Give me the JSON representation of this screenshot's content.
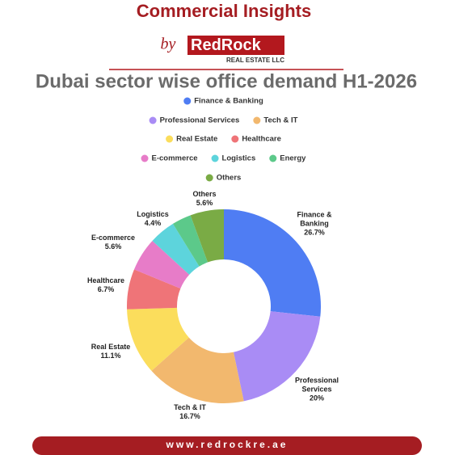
{
  "header": {
    "title": "Commercial Insights",
    "by": "by",
    "logo_red": "Red",
    "logo_rock": "Rock",
    "logo_sub": "REAL ESTATE LLC"
  },
  "chart_data": {
    "type": "donut",
    "title": "Dubai sector wise office demand H1-2026",
    "categories": [
      "Finance & Banking",
      "Professional Services",
      "Tech & IT",
      "Real Estate",
      "Healthcare",
      "E-commerce",
      "Logistics",
      "Energy",
      "Others"
    ],
    "values": [
      26.7,
      20,
      16.7,
      11.1,
      6.7,
      5.6,
      4.4,
      3.2,
      5.6
    ],
    "value_labels": [
      "26.7%",
      "20%",
      "16.7%",
      "11.1%",
      "6.7%",
      "5.6%",
      "4.4%",
      null,
      "5.6%"
    ],
    "colors": [
      "#4f7df3",
      "#a98cf5",
      "#f2b86e",
      "#fbdd5c",
      "#ef7478",
      "#e77cc8",
      "#5dd4dc",
      "#5cc98a",
      "#7aab45"
    ],
    "legend": "top"
  },
  "footer": {
    "url": "www.redrockre.ae"
  }
}
